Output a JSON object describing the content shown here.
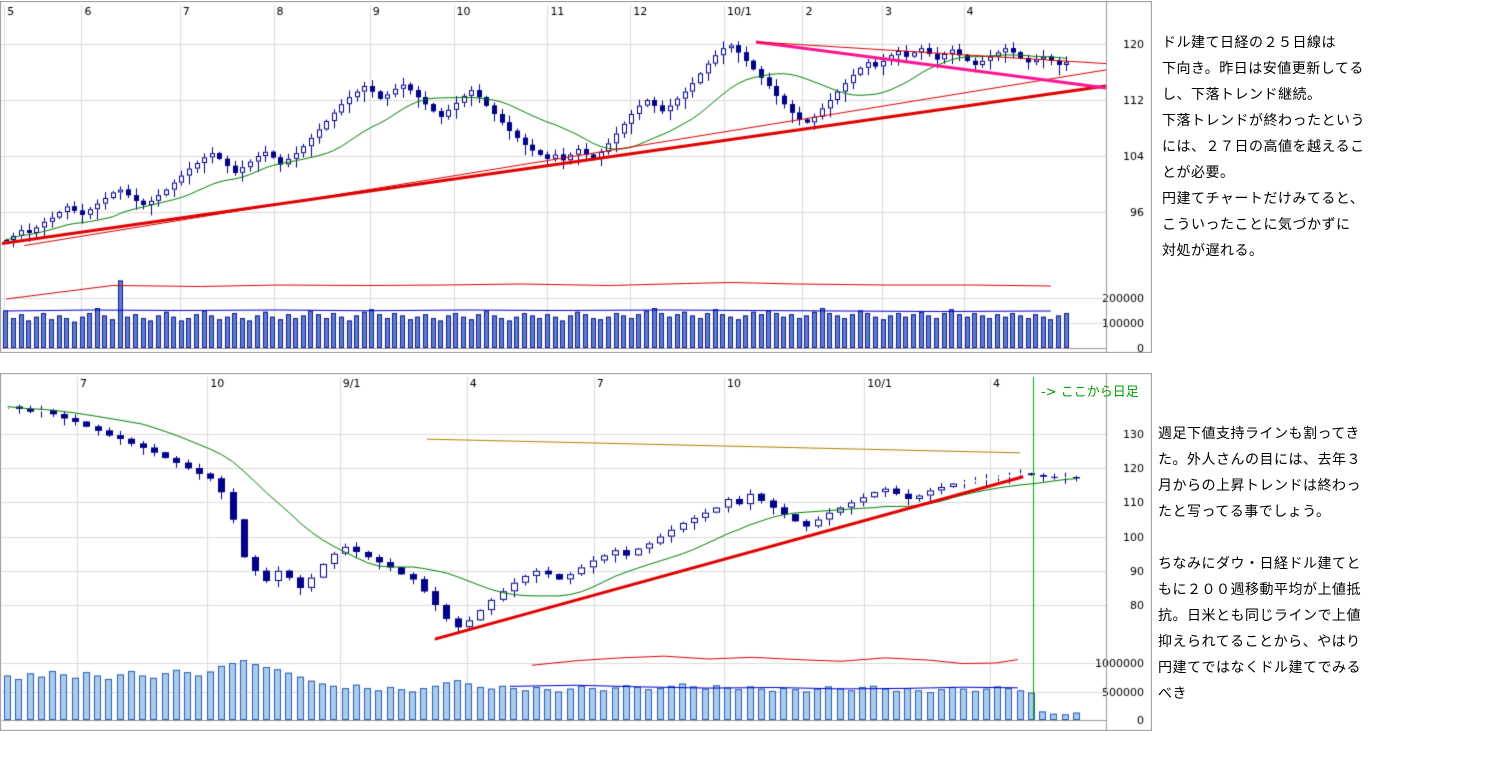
{
  "commentary": {
    "daily": [
      "ドル建て日経の２５日線は",
      "下向き。昨日は安値更新してる",
      "し、下落トレンド継続。",
      "下落トレンドが終わったという",
      "には、２７日の高値を越えるこ",
      "とが必要。",
      "円建てチャートだけみてると、",
      "こういったことに気づかずに",
      "対処が遅れる。"
    ],
    "weekly_part1": [
      "週足下値支持ラインも割ってき",
      "た。外人さんの目には、去年３",
      "月からの上昇トレンドは終わっ",
      "たと写ってる事でしょう。"
    ],
    "weekly_part2": [
      "ちなみにダウ・日経ドル建てと",
      "もに２００週移動平均が上値抵",
      "抗。日米とも同じラインで上値",
      "抑えられてることから、やはり",
      "円建てではなくドル建てでみる",
      "べき"
    ]
  },
  "callout": {
    "text": "-> ここから日足",
    "color": "#00a000"
  },
  "chart_data": [
    {
      "name": "daily-candlestick",
      "type": "candlestick",
      "grid": true,
      "x_labels": [
        {
          "t": "5",
          "f": 0.002
        },
        {
          "t": "6",
          "f": 0.072
        },
        {
          "t": "7",
          "f": 0.161
        },
        {
          "t": "8",
          "f": 0.246
        },
        {
          "t": "9",
          "f": 0.333
        },
        {
          "t": "10",
          "f": 0.409
        },
        {
          "t": "11",
          "f": 0.494
        },
        {
          "t": "12",
          "f": 0.569
        },
        {
          "t": "10/1",
          "f": 0.654
        },
        {
          "t": "2",
          "f": 0.725
        },
        {
          "t": "3",
          "f": 0.797
        },
        {
          "t": "4",
          "f": 0.871
        }
      ],
      "y_ticks": [
        120,
        112,
        104,
        96
      ],
      "volume_ticks": [
        200000,
        100000,
        0
      ],
      "value_range": [
        86,
        125
      ],
      "ma_period": 15,
      "colors": {
        "candle": "#000088",
        "ma": "#008000",
        "volume_fill": "#5b7fd0",
        "volume_edge": "#1a1a90",
        "volume_ma_red": "#dd0000",
        "volume_ma_blue": "#0000cc"
      },
      "closes": [
        92.0,
        92.6,
        93.4,
        93.0,
        93.8,
        94.6,
        95.2,
        96.0,
        96.8,
        96.2,
        95.6,
        96.4,
        97.2,
        98.0,
        98.8,
        99.2,
        98.4,
        97.6,
        97.0,
        97.6,
        98.4,
        99.2,
        100.2,
        101.2,
        102.2,
        103.0,
        103.8,
        104.4,
        103.6,
        102.6,
        101.6,
        102.4,
        103.2,
        104.0,
        104.6,
        103.8,
        102.8,
        103.6,
        104.4,
        105.4,
        106.6,
        107.8,
        109.0,
        110.2,
        111.4,
        112.4,
        113.2,
        114.0,
        113.2,
        112.2,
        112.8,
        113.6,
        114.2,
        113.4,
        112.4,
        111.4,
        110.4,
        109.6,
        110.6,
        111.6,
        112.6,
        113.4,
        112.4,
        111.2,
        110.0,
        108.8,
        107.6,
        106.6,
        105.6,
        104.8,
        104.2,
        103.6,
        104.2,
        103.4,
        104.2,
        105.0,
        104.2,
        103.6,
        104.6,
        105.8,
        107.2,
        108.6,
        110.0,
        111.2,
        112.0,
        111.2,
        110.4,
        111.2,
        112.2,
        113.2,
        114.4,
        115.8,
        117.2,
        118.4,
        119.4,
        119.8,
        118.8,
        117.6,
        116.4,
        115.2,
        114.0,
        112.6,
        111.4,
        110.2,
        109.2,
        108.8,
        109.6,
        110.8,
        112.0,
        113.2,
        114.4,
        115.6,
        116.6,
        117.4,
        116.8,
        117.6,
        118.4,
        119.0,
        118.2,
        118.8,
        119.4,
        118.6,
        117.8,
        118.6,
        119.2,
        118.4,
        117.6,
        117.0,
        117.6,
        118.2,
        118.8,
        119.4,
        118.8,
        118.0,
        117.4,
        117.8,
        118.2,
        117.6,
        117.0,
        117.4
      ],
      "volumes_k": [
        150,
        120,
        135,
        110,
        125,
        140,
        115,
        130,
        120,
        105,
        125,
        140,
        160,
        130,
        115,
        270,
        125,
        135,
        120,
        110,
        130,
        145,
        125,
        110,
        120,
        135,
        150,
        130,
        115,
        125,
        140,
        120,
        110,
        130,
        145,
        125,
        115,
        135,
        120,
        130,
        150,
        135,
        120,
        140,
        125,
        110,
        130,
        145,
        155,
        135,
        120,
        140,
        130,
        115,
        125,
        135,
        120,
        110,
        130,
        140,
        125,
        115,
        135,
        150,
        130,
        120,
        110,
        125,
        140,
        130,
        120,
        135,
        125,
        110,
        130,
        145,
        135,
        120,
        115,
        125,
        140,
        130,
        120,
        135,
        150,
        160,
        140,
        125,
        135,
        145,
        130,
        120,
        140,
        155,
        135,
        125,
        115,
        130,
        145,
        135,
        150,
        140,
        125,
        135,
        120,
        130,
        145,
        160,
        140,
        130,
        120,
        135,
        150,
        140,
        125,
        115,
        130,
        140,
        125,
        135,
        145,
        130,
        120,
        140,
        155,
        135,
        125,
        140,
        130,
        120,
        135,
        125,
        140,
        130,
        120,
        135,
        125,
        115,
        130,
        140
      ],
      "volume_unit": 1000,
      "volume_ma_red": [
        [
          0.004,
          196
        ],
        [
          0.05,
          222
        ],
        [
          0.1,
          250
        ],
        [
          0.18,
          246
        ],
        [
          0.25,
          252
        ],
        [
          0.33,
          250
        ],
        [
          0.4,
          252
        ],
        [
          0.47,
          256
        ],
        [
          0.55,
          250
        ],
        [
          0.62,
          258
        ],
        [
          0.66,
          262
        ],
        [
          0.72,
          256
        ],
        [
          0.8,
          252
        ],
        [
          0.88,
          252
        ],
        [
          0.95,
          248
        ]
      ],
      "volume_ma_blue": [
        [
          0.004,
          148
        ],
        [
          0.08,
          152
        ],
        [
          0.16,
          150
        ],
        [
          0.25,
          152
        ],
        [
          0.33,
          149
        ],
        [
          0.42,
          152
        ],
        [
          0.5,
          150
        ],
        [
          0.6,
          152
        ],
        [
          0.68,
          150
        ],
        [
          0.76,
          148
        ],
        [
          0.85,
          146
        ],
        [
          0.95,
          148
        ]
      ],
      "trendlines": [
        {
          "x1f": 0.0,
          "v1": 91.5,
          "x2f": 1.0,
          "v2": 114.0,
          "color": "#e00000",
          "w": 3
        },
        {
          "x1f": 0.02,
          "v1": 91.2,
          "x2f": 1.0,
          "v2": 116.3,
          "color": "#e00000",
          "w": 1
        },
        {
          "x1f": 0.683,
          "v1": 120.3,
          "x2f": 1.0,
          "v2": 113.7,
          "color": "#ff1493",
          "w": 3
        },
        {
          "x1f": 0.683,
          "v1": 120.3,
          "x2f": 1.0,
          "v2": 117.2,
          "color": "#e00000",
          "w": 1
        }
      ]
    },
    {
      "name": "weekly-candlestick",
      "type": "candlestick",
      "grid": true,
      "x_labels": [
        {
          "t": "7",
          "f": 0.068
        },
        {
          "t": "10",
          "f": 0.186
        },
        {
          "t": "9/1",
          "f": 0.306
        },
        {
          "t": "4",
          "f": 0.421
        },
        {
          "t": "7",
          "f": 0.536
        },
        {
          "t": "10",
          "f": 0.654
        },
        {
          "t": "10/1",
          "f": 0.781
        },
        {
          "t": "4",
          "f": 0.895
        }
      ],
      "y_ticks": [
        130,
        120,
        110,
        100,
        90,
        80
      ],
      "volume_ticks": [
        1000000,
        500000,
        0
      ],
      "value_range": [
        68,
        142
      ],
      "ma_period": 13,
      "colors": {
        "candle": "#000088",
        "ma": "#008000",
        "volume_fill": "#a8cbee",
        "volume_edge": "#3060b0",
        "volume_ma_red": "#dd0000",
        "volume_ma_blue": "#0000cc"
      },
      "closes": [
        138.0,
        137.4,
        136.6,
        137.0,
        135.8,
        134.6,
        133.6,
        132.2,
        131.0,
        129.6,
        128.6,
        127.2,
        126.0,
        124.6,
        123.0,
        121.6,
        120.0,
        118.4,
        117.0,
        113.0,
        105.0,
        94.0,
        90.0,
        87.0,
        90.0,
        88.0,
        85.0,
        88.0,
        92.0,
        95.0,
        97.0,
        95.5,
        94.0,
        92.5,
        91.0,
        89.0,
        87.5,
        84.0,
        80.0,
        76.0,
        73.5,
        75.5,
        78.5,
        81.5,
        84.0,
        86.5,
        88.5,
        90.0,
        89.0,
        87.5,
        89.0,
        91.0,
        93.0,
        94.5,
        96.0,
        94.5,
        96.5,
        98.0,
        100.0,
        102.0,
        104.0,
        105.5,
        107.0,
        108.5,
        111.0,
        109.5,
        112.5,
        110.5,
        108.5,
        106.5,
        104.5,
        103.0,
        105.0,
        107.0,
        108.5,
        110.0,
        111.5,
        113.0,
        114.0,
        112.5,
        111.0,
        112.0,
        113.5,
        114.5,
        115.5,
        116.0,
        116.5,
        117.0,
        117.5,
        118.0,
        118.5,
        118.0,
        117.5,
        117.2,
        117.4,
        117.0
      ],
      "volumes_k": [
        780,
        720,
        820,
        760,
        860,
        800,
        740,
        840,
        780,
        720,
        800,
        860,
        780,
        740,
        820,
        880,
        840,
        780,
        850,
        950,
        1000,
        1050,
        980,
        930,
        890,
        830,
        760,
        690,
        640,
        600,
        560,
        620,
        560,
        520,
        580,
        540,
        500,
        560,
        600,
        660,
        700,
        640,
        580,
        550,
        600,
        560,
        520,
        580,
        540,
        500,
        550,
        600,
        560,
        520,
        570,
        610,
        580,
        540,
        560,
        600,
        640,
        590,
        550,
        610,
        570,
        540,
        590,
        550,
        510,
        560,
        540,
        500,
        550,
        590,
        560,
        520,
        580,
        600,
        550,
        510,
        560,
        520,
        490,
        540,
        580,
        550,
        510,
        550,
        590,
        560,
        520,
        480,
        150,
        110,
        100,
        130
      ],
      "volume_unit": 1000,
      "volume_ma_red": [
        [
          0.48,
          960
        ],
        [
          0.52,
          1040
        ],
        [
          0.56,
          1090
        ],
        [
          0.6,
          1120
        ],
        [
          0.64,
          1070
        ],
        [
          0.68,
          1100
        ],
        [
          0.72,
          1060
        ],
        [
          0.76,
          1030
        ],
        [
          0.8,
          1090
        ],
        [
          0.84,
          1050
        ],
        [
          0.87,
          990
        ],
        [
          0.9,
          1000
        ],
        [
          0.92,
          1060
        ]
      ],
      "volume_ma_blue": [
        [
          0.46,
          590
        ],
        [
          0.52,
          610
        ],
        [
          0.58,
          580
        ],
        [
          0.64,
          560
        ],
        [
          0.7,
          570
        ],
        [
          0.76,
          545
        ],
        [
          0.82,
          555
        ],
        [
          0.87,
          575
        ],
        [
          0.92,
          565
        ]
      ],
      "trendlines": [
        {
          "x1f": 0.392,
          "v1": 70.0,
          "x2f": 0.925,
          "v2": 117.5,
          "color": "#e00000",
          "w": 3
        },
        {
          "x1f": 0.385,
          "v1": 128.5,
          "x2f": 0.922,
          "v2": 124.5,
          "color": "#b08000",
          "w": 1
        }
      ],
      "vlines": [
        {
          "f": 0.934,
          "color": "#00b000"
        }
      ]
    }
  ]
}
